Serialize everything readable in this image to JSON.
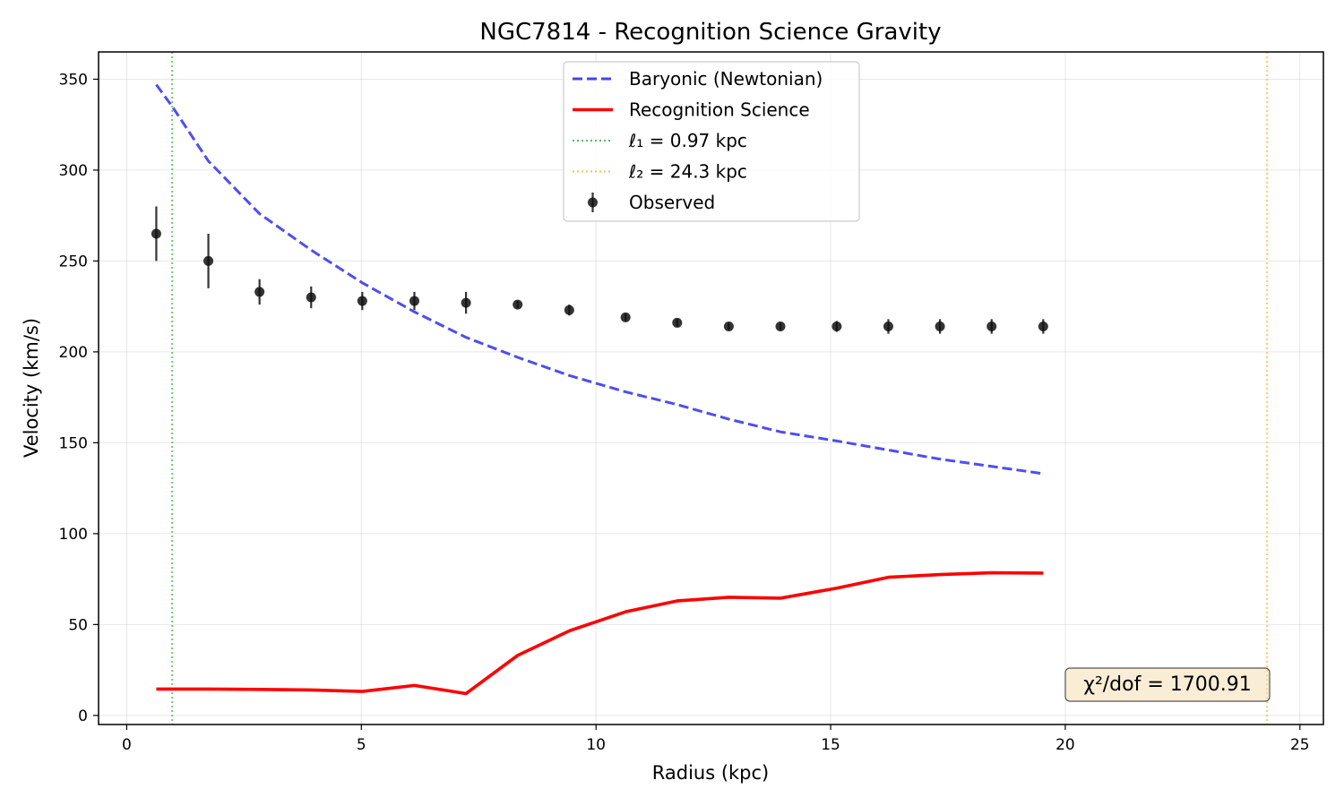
{
  "chart_data": {
    "type": "line",
    "title": "NGC7814 - Recognition Science Gravity",
    "xlabel": "Radius (kpc)",
    "ylabel": "Velocity (km/s)",
    "xlim": [
      -0.6,
      25.5
    ],
    "ylim": [
      -5,
      365
    ],
    "xticks": [
      0,
      5,
      10,
      15,
      20,
      25
    ],
    "yticks": [
      0,
      50,
      100,
      150,
      200,
      250,
      300,
      350
    ],
    "grid": true,
    "legend_position": "upper center",
    "series": [
      {
        "name": "Baryonic (Newtonian)",
        "style": "dashed",
        "color": "#4444ee",
        "x": [
          0.63,
          0.97,
          1.74,
          2.83,
          3.93,
          5.02,
          6.13,
          7.23,
          8.33,
          9.43,
          10.63,
          11.73,
          12.83,
          13.93,
          15.13,
          16.23,
          17.33,
          18.43,
          19.53
        ],
        "y": [
          347,
          335,
          305,
          276,
          256,
          238,
          222,
          208,
          197,
          187,
          178,
          171,
          163,
          156,
          151,
          146,
          141,
          137,
          133
        ]
      },
      {
        "name": "Recognition Science",
        "style": "solid",
        "color": "#ff0000",
        "x": [
          0.63,
          1.74,
          2.83,
          3.93,
          5.02,
          6.13,
          7.23,
          8.33,
          9.43,
          10.63,
          11.73,
          12.83,
          13.93,
          15.13,
          16.23,
          17.33,
          18.43,
          19.53
        ],
        "y": [
          14.5,
          14.5,
          14.3,
          14.0,
          13.2,
          16.5,
          12.0,
          33,
          46.5,
          57,
          63,
          65,
          64.5,
          70,
          76,
          77.5,
          78.5,
          78.3
        ]
      },
      {
        "name": "Observed",
        "style": "errorbar",
        "color": "#111111",
        "x": [
          0.63,
          1.74,
          2.83,
          3.93,
          5.02,
          6.13,
          7.23,
          8.33,
          9.43,
          10.63,
          11.73,
          12.83,
          13.93,
          15.13,
          16.23,
          17.33,
          18.43,
          19.53
        ],
        "y": [
          265,
          250,
          233,
          230,
          228,
          228,
          227,
          226,
          223,
          219,
          216,
          214,
          214,
          214,
          214,
          214,
          214,
          214
        ],
        "err": [
          15,
          15,
          7,
          6,
          5,
          5,
          6,
          2,
          3,
          2,
          2,
          2,
          2,
          3,
          4,
          4,
          4,
          4
        ]
      }
    ],
    "vlines": [
      {
        "label": "ℓ₁ = 0.97 kpc",
        "x": 0.97,
        "color": "#5cb85c",
        "style": "dotted"
      },
      {
        "label": "ℓ₂ = 24.3 kpc",
        "x": 24.3,
        "color": "#ffc04d",
        "style": "dotted"
      }
    ],
    "legend": [
      {
        "label": "Baryonic (Newtonian)",
        "kind": "dashed",
        "color": "#4444ee"
      },
      {
        "label": "Recognition Science",
        "kind": "solid",
        "color": "#ff0000"
      },
      {
        "label": "ℓ₁ = 0.97 kpc",
        "kind": "dotted",
        "color": "#5cb85c"
      },
      {
        "label": "ℓ₂ = 24.3 kpc",
        "kind": "dotted",
        "color": "#ffc04d"
      },
      {
        "label": "Observed",
        "kind": "marker",
        "color": "#111111"
      }
    ],
    "annotation": "χ²/dof = 1700.91"
  }
}
